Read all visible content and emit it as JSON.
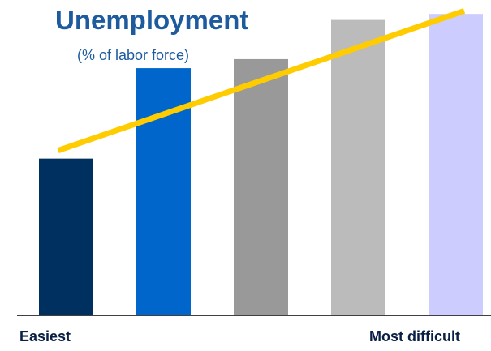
{
  "chart_data": {
    "type": "bar",
    "title": "Unemployment",
    "subtitle": "(% of labor force)",
    "categories": [
      "",
      "",
      "",
      "",
      ""
    ],
    "values": [
      5.2,
      8.2,
      8.5,
      9.8,
      10.0
    ],
    "ylim": [
      0,
      10.3
    ],
    "bar_colors": [
      "#00305f",
      "#0066cc",
      "#999999",
      "#bbbbbb",
      "#ccccff"
    ],
    "trend_line": {
      "color": "#ffcc00",
      "start": [
        0,
        5.2
      ],
      "end": [
        4.4,
        10.1
      ]
    },
    "grid": false,
    "xlabel_left": "Easiest",
    "xlabel_right": "Most difficult"
  }
}
